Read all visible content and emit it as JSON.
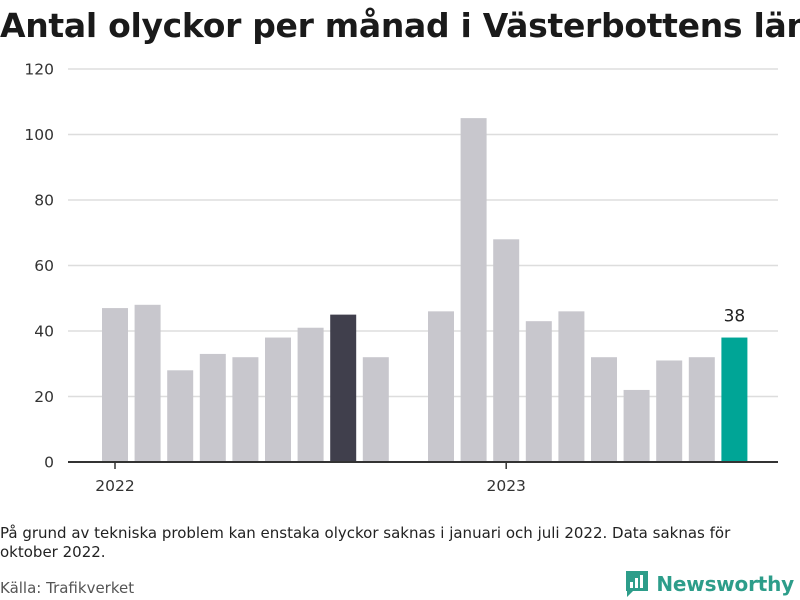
{
  "title": "Antal olyckor per månad i Västerbottens län",
  "note": "På grund av tekniska problem kan enstaka olyckor saknas i januari och juli 2022. Data saknas för oktober 2022.",
  "source": "Källa: Trafikverket",
  "brand": "Newsworthy",
  "colors": {
    "bar_default": "#c8c7cd",
    "bar_highlight_dark": "#403f4c",
    "bar_highlight_latest": "#00a596",
    "gridline": "#dddddd",
    "axis": "#333333",
    "brand": "#2d9d8a"
  },
  "chart_data": {
    "type": "bar",
    "title": "Antal olyckor per månad i Västerbottens län",
    "xlabel": "",
    "ylabel": "",
    "ylim": [
      0,
      120
    ],
    "yticks": [
      "0",
      "20",
      "40",
      "60",
      "80",
      "100",
      "120"
    ],
    "grid": true,
    "x_tick_labels": [
      {
        "label": "2022",
        "at_month": "2022-01"
      },
      {
        "label": "2023",
        "at_month": "2023-01"
      }
    ],
    "bars": [
      {
        "month": "2022-01",
        "value": 47
      },
      {
        "month": "2022-02",
        "value": 48
      },
      {
        "month": "2022-03",
        "value": 28
      },
      {
        "month": "2022-04",
        "value": 33
      },
      {
        "month": "2022-05",
        "value": 32
      },
      {
        "month": "2022-06",
        "value": 38
      },
      {
        "month": "2022-07",
        "value": 41
      },
      {
        "month": "2022-08",
        "value": 45,
        "highlight": "dark"
      },
      {
        "month": "2022-09",
        "value": 32
      },
      {
        "month": "2022-10",
        "value": null
      },
      {
        "month": "2022-11",
        "value": 46
      },
      {
        "month": "2022-12",
        "value": 105
      },
      {
        "month": "2023-01",
        "value": 68
      },
      {
        "month": "2023-02",
        "value": 43
      },
      {
        "month": "2023-03",
        "value": 46
      },
      {
        "month": "2023-04",
        "value": 32
      },
      {
        "month": "2023-05",
        "value": 22
      },
      {
        "month": "2023-06",
        "value": 31
      },
      {
        "month": "2023-07",
        "value": 32
      },
      {
        "month": "2023-08",
        "value": 38,
        "highlight": "latest",
        "label": "38"
      }
    ]
  }
}
